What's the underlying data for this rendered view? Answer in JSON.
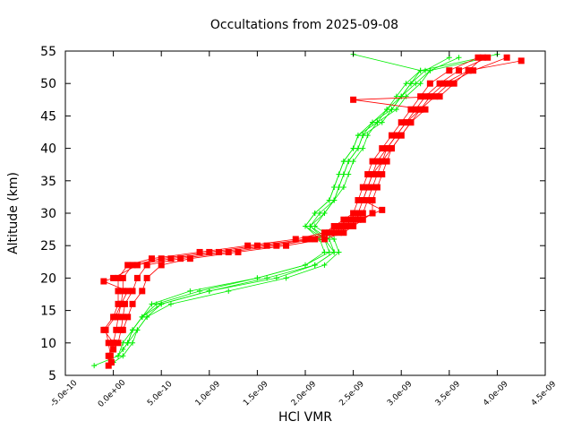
{
  "chart_data": {
    "type": "line",
    "title": "Occultations from 2025-09-08",
    "xlabel": "HCl VMR",
    "ylabel": "Altitude (km)",
    "xlim": [
      -5e-10,
      4.5e-09
    ],
    "ylim": [
      5,
      55
    ],
    "x_ticks": [
      -5e-10,
      0,
      5e-10,
      1e-09,
      1.5e-09,
      2e-09,
      2.5e-09,
      3e-09,
      3.5e-09,
      4e-09,
      4.5e-09
    ],
    "x_tick_labels": [
      "-5.0e-10",
      "0.0e+00",
      "5.0e-10",
      "1.0e-09",
      "1.5e-09",
      "2.0e-09",
      "2.5e-09",
      "3.0e-09",
      "3.5e-09",
      "4.0e-09",
      "4.5e-09"
    ],
    "y_ticks": [
      5,
      10,
      15,
      20,
      25,
      30,
      35,
      40,
      45,
      50,
      55
    ],
    "y_tick_labels": [
      "5",
      "10",
      "15",
      "20",
      "25",
      "30",
      "35",
      "40",
      "45",
      "50",
      "55"
    ],
    "grid": false,
    "legend": "none",
    "series": [
      {
        "marker": "plus",
        "color": "#00ee00",
        "profiles": [
          {
            "y": [
              6.5,
              8,
              10,
              12,
              14,
              16,
              18,
              20,
              22,
              24,
              26,
              28,
              30,
              32,
              34,
              36,
              38,
              40,
              42,
              44,
              46,
              48,
              50,
              52,
              54.5
            ],
            "x": [
              -2e-10,
              5e-11,
              1.5e-10,
              2e-10,
              3e-10,
              5e-10,
              1e-09,
              1.7e-09,
              2.1e-09,
              2.3e-09,
              2.25e-09,
              2.05e-09,
              2.15e-09,
              2.3e-09,
              2.35e-09,
              2.4e-09,
              2.45e-09,
              2.55e-09,
              2.6e-09,
              2.7e-09,
              2.9e-09,
              3e-09,
              3.1e-09,
              3.2e-09,
              4e-09
            ]
          },
          {
            "y": [
              7,
              8,
              10,
              12,
              14,
              16,
              18,
              20,
              22,
              24,
              26,
              28,
              30,
              32,
              34,
              36,
              38,
              40,
              42,
              44,
              46,
              48,
              50,
              52,
              54
            ],
            "x": [
              0.0,
              1e-10,
              2e-10,
              2.5e-10,
              3.5e-10,
              6e-10,
              1.2e-09,
              1.8e-09,
              2.2e-09,
              2.35e-09,
              2.3e-09,
              2.1e-09,
              2.2e-09,
              2.3e-09,
              2.4e-09,
              2.45e-09,
              2.5e-09,
              2.6e-09,
              2.65e-09,
              2.75e-09,
              2.95e-09,
              3.05e-09,
              3.2e-09,
              3.3e-09,
              3.9e-09
            ]
          },
          {
            "y": [
              8,
              10,
              12,
              14,
              16,
              18,
              20,
              22,
              24,
              26,
              28,
              30,
              32,
              34,
              36,
              38,
              40,
              42,
              44,
              46,
              48,
              50,
              52,
              54.5
            ],
            "x": [
              5e-11,
              1e-10,
              2e-10,
              3e-10,
              4e-10,
              8e-10,
              1.5e-09,
              2e-09,
              2.2e-09,
              2.15e-09,
              2e-09,
              2.1e-09,
              2.25e-09,
              2.3e-09,
              2.35e-09,
              2.4e-09,
              2.5e-09,
              2.55e-09,
              2.7e-09,
              2.85e-09,
              2.95e-09,
              3.05e-09,
              3.2e-09,
              2.5e-09
            ]
          },
          {
            "y": [
              9,
              10,
              12,
              14,
              16,
              18,
              20,
              22,
              24,
              26,
              28,
              30,
              32,
              34,
              36,
              38,
              40,
              42,
              44,
              46,
              48,
              50,
              52,
              54
            ],
            "x": [
              1e-10,
              1.5e-10,
              2.5e-10,
              3.5e-10,
              5e-10,
              1e-09,
              1.6e-09,
              2.1e-09,
              2.3e-09,
              2.2e-09,
              2.05e-09,
              2.2e-09,
              2.3e-09,
              2.35e-09,
              2.4e-09,
              2.45e-09,
              2.55e-09,
              2.6e-09,
              2.8e-09,
              2.9e-09,
              3e-09,
              3.15e-09,
              3.3e-09,
              3.6e-09
            ]
          },
          {
            "y": [
              10,
              12,
              14,
              16,
              18,
              20,
              22,
              24,
              26,
              28,
              30,
              32,
              34,
              36,
              38,
              40,
              42,
              44,
              46,
              48,
              50,
              52,
              54
            ],
            "x": [
              1.5e-10,
              2e-10,
              3e-10,
              4.5e-10,
              9e-10,
              1.5e-09,
              2e-09,
              2.25e-09,
              2.2e-09,
              2e-09,
              2.1e-09,
              2.25e-09,
              2.3e-09,
              2.35e-09,
              2.4e-09,
              2.5e-09,
              2.55e-09,
              2.75e-09,
              2.85e-09,
              3e-09,
              3.1e-09,
              3.25e-09,
              3.5e-09
            ]
          }
        ]
      },
      {
        "marker": "square",
        "color": "#ff0000",
        "profiles": [
          {
            "y": [
              6.5,
              8,
              10,
              12,
              14,
              16,
              18,
              20,
              22,
              23,
              24,
              25,
              26,
              27,
              28,
              29,
              30,
              32,
              34,
              36,
              38,
              40,
              42,
              44,
              46,
              48,
              50,
              52,
              54
            ],
            "x": [
              -5e-11,
              -5e-11,
              0.0,
              -1e-10,
              0.0,
              5e-11,
              5e-11,
              5e-11,
              1.5e-10,
              4e-10,
              9e-10,
              1.4e-09,
              1.9e-09,
              2.2e-09,
              2.3e-09,
              2.4e-09,
              2.5e-09,
              2.55e-09,
              2.6e-09,
              2.65e-09,
              2.7e-09,
              2.8e-09,
              2.9e-09,
              3e-09,
              3.1e-09,
              3.2e-09,
              3.3e-09,
              3.5e-09,
              3.8e-09
            ]
          },
          {
            "y": [
              7,
              8,
              10,
              12,
              14,
              16,
              18,
              20,
              22,
              23,
              24,
              25,
              26,
              27,
              28,
              29,
              30,
              32,
              34,
              36,
              38,
              40,
              42,
              44,
              46,
              48,
              50,
              52,
              54
            ],
            "x": [
              -2e-11,
              -3e-11,
              -5e-11,
              -8e-11,
              2e-11,
              8e-11,
              1e-10,
              1e-10,
              2e-10,
              5e-10,
              1e-09,
              1.5e-09,
              2e-09,
              2.25e-09,
              2.35e-09,
              2.45e-09,
              2.55e-09,
              2.6e-09,
              2.65e-09,
              2.7e-09,
              2.75e-09,
              2.85e-09,
              2.95e-09,
              3.05e-09,
              3.15e-09,
              3.25e-09,
              3.4e-09,
              3.6e-09,
              3.9e-09
            ]
          },
          {
            "y": [
              9,
              10,
              12,
              14,
              16,
              18,
              19.5,
              20,
              22,
              23,
              24,
              25,
              26,
              27,
              28,
              29,
              30,
              32,
              34,
              36,
              38,
              40,
              42,
              44,
              46,
              48,
              50,
              52,
              53.5
            ],
            "x": [
              0.0,
              0.0,
              3e-11,
              5e-11,
              8e-11,
              1.5e-10,
              -1e-10,
              0.0,
              2.5e-10,
              6e-10,
              1.1e-09,
              1.6e-09,
              2.05e-09,
              2.3e-09,
              2.4e-09,
              2.5e-09,
              2.6e-09,
              2.65e-09,
              2.7e-09,
              2.75e-09,
              2.8e-09,
              2.9e-09,
              3e-09,
              3.1e-09,
              3.2e-09,
              3.3e-09,
              3.45e-09,
              3.7e-09,
              4.25e-09
            ]
          },
          {
            "y": [
              10,
              12,
              14,
              16,
              18,
              20,
              22,
              23,
              24,
              25,
              26,
              27,
              28,
              29,
              30.5,
              32,
              34,
              36,
              38,
              40,
              42,
              44,
              46,
              48,
              50,
              52,
              54
            ],
            "x": [
              5e-11,
              8e-11,
              1e-10,
              1.2e-10,
              2e-10,
              2.5e-10,
              3.5e-10,
              7e-10,
              1.2e-09,
              1.7e-09,
              2.1e-09,
              2.35e-09,
              2.45e-09,
              2.55e-09,
              2.8e-09,
              2.6e-09,
              2.65e-09,
              2.7e-09,
              2.8e-09,
              2.85e-09,
              2.95e-09,
              3.05e-09,
              3.2e-09,
              3.35e-09,
              3.5e-09,
              3.75e-09,
              4.1e-09
            ]
          },
          {
            "y": [
              12,
              14,
              16,
              18,
              20,
              22,
              23,
              24,
              25,
              26,
              27,
              28,
              29,
              30,
              32,
              34,
              36,
              38,
              40,
              42,
              44,
              46,
              47.5,
              48,
              50,
              52,
              54
            ],
            "x": [
              1e-10,
              1.5e-10,
              2e-10,
              3e-10,
              3.5e-10,
              5e-10,
              8e-10,
              1.3e-09,
              1.8e-09,
              2.2e-09,
              2.4e-09,
              2.5e-09,
              2.6e-09,
              2.7e-09,
              2.7e-09,
              2.75e-09,
              2.8e-09,
              2.85e-09,
              2.9e-09,
              3e-09,
              3.1e-09,
              3.25e-09,
              2.5e-09,
              3.4e-09,
              3.55e-09,
              3.7e-09,
              3.85e-09
            ]
          }
        ]
      }
    ]
  }
}
